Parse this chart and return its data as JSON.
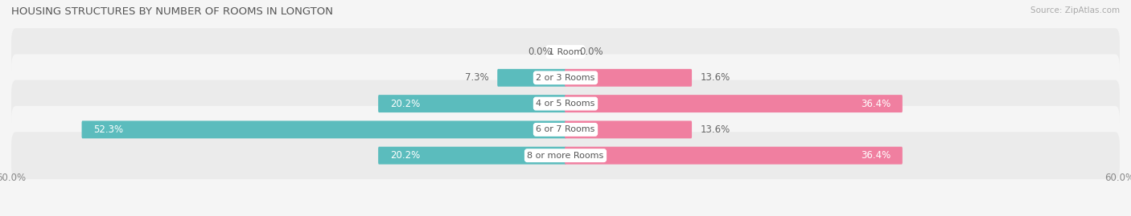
{
  "title": "HOUSING STRUCTURES BY NUMBER OF ROOMS IN LONGTON",
  "source": "Source: ZipAtlas.com",
  "categories": [
    "1 Room",
    "2 or 3 Rooms",
    "4 or 5 Rooms",
    "6 or 7 Rooms",
    "8 or more Rooms"
  ],
  "owner_values": [
    0.0,
    7.3,
    20.2,
    52.3,
    20.2
  ],
  "renter_values": [
    0.0,
    13.6,
    36.4,
    13.6,
    36.4
  ],
  "owner_color": "#5bbcbd",
  "renter_color": "#f07fa0",
  "row_bg_even": "#ebebeb",
  "row_bg_odd": "#f5f5f5",
  "fig_bg": "#f5f5f5",
  "axis_limit": 60.0,
  "text_dark": "#666666",
  "text_white": "#ffffff",
  "center_label_color": "#555555",
  "bar_height": 0.52,
  "figsize": [
    14.06,
    2.69
  ],
  "dpi": 100,
  "title_fontsize": 9.5,
  "label_fontsize": 8.5,
  "tick_fontsize": 8.5,
  "source_fontsize": 7.5,
  "cat_fontsize": 8.0
}
